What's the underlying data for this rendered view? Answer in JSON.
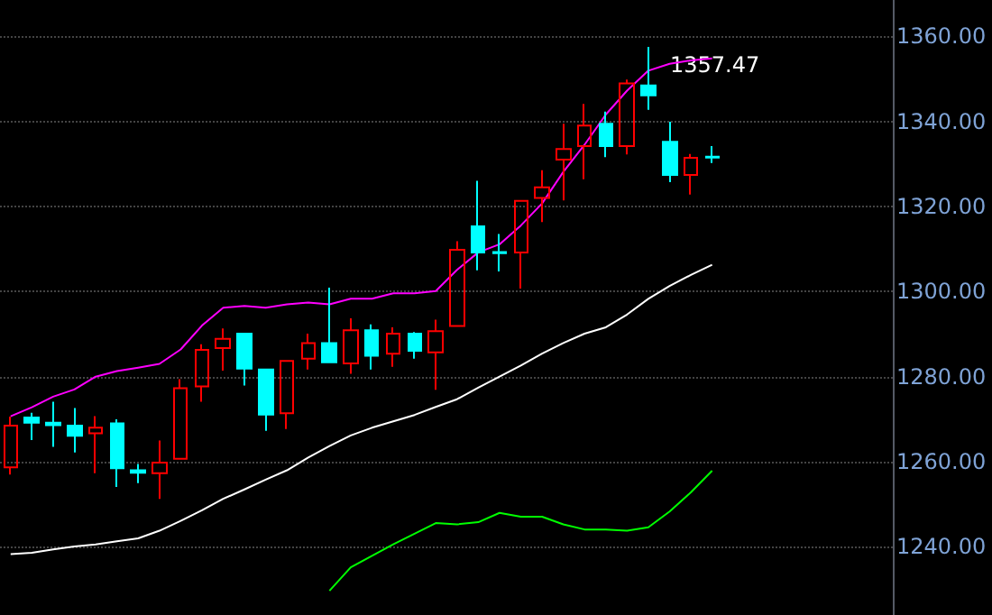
{
  "chart_data": {
    "type": "candlestick",
    "categories": [
      null,
      null,
      null,
      null,
      null,
      null,
      null,
      null,
      null,
      null,
      null,
      null,
      null,
      null,
      null,
      null,
      null,
      null,
      null,
      null,
      null,
      null,
      null,
      null,
      null,
      null,
      null,
      null,
      null,
      null,
      null,
      null,
      null,
      null
    ],
    "ohlc": [
      [
        1258.7,
        1270.6,
        1257.0,
        1268.5
      ],
      [
        1270.4,
        1271.5,
        1265.1,
        1269.2
      ],
      [
        1269.2,
        1274.1,
        1263.5,
        1268.6
      ],
      [
        1268.5,
        1272.6,
        1262.2,
        1266.1
      ],
      [
        1266.7,
        1270.7,
        1257.3,
        1268.0
      ],
      [
        1269.0,
        1270.0,
        1254.1,
        1258.5
      ],
      [
        1258.0,
        1259.5,
        1255.0,
        1257.4
      ],
      [
        1257.3,
        1265.0,
        1251.3,
        1259.8
      ],
      [
        1260.7,
        1279.4,
        1260.5,
        1277.3
      ],
      [
        1277.7,
        1287.6,
        1274.1,
        1286.3
      ],
      [
        1286.7,
        1291.3,
        1281.4,
        1288.9
      ],
      [
        1290.1,
        1290.1,
        1277.9,
        1281.9
      ],
      [
        1281.7,
        1281.7,
        1267.3,
        1271.1
      ],
      [
        1271.4,
        1283.7,
        1267.7,
        1283.7
      ],
      [
        1284.2,
        1290.1,
        1281.7,
        1287.9
      ],
      [
        1287.9,
        1300.9,
        1283.4,
        1283.4
      ],
      [
        1283.1,
        1293.7,
        1280.7,
        1290.9
      ],
      [
        1290.9,
        1292.3,
        1281.7,
        1284.9
      ],
      [
        1285.4,
        1291.6,
        1282.3,
        1290.1
      ],
      [
        1290.1,
        1290.5,
        1284.2,
        1286.1
      ],
      [
        1285.7,
        1293.4,
        1276.9,
        1290.7
      ],
      [
        1291.9,
        1311.8,
        1291.9,
        1309.8
      ],
      [
        1315.3,
        1326.0,
        1305.0,
        1309.2
      ],
      [
        1309.3,
        1313.5,
        1304.7,
        1309.0
      ],
      [
        1309.2,
        1321.3,
        1300.7,
        1321.3
      ],
      [
        1322.0,
        1328.5,
        1316.3,
        1324.5
      ],
      [
        1331.0,
        1339.4,
        1321.4,
        1333.5
      ],
      [
        1334.2,
        1344.1,
        1326.4,
        1339.0
      ],
      [
        1339.4,
        1342.3,
        1331.6,
        1334.2
      ],
      [
        1334.2,
        1349.8,
        1332.2,
        1348.9
      ],
      [
        1348.4,
        1357.47,
        1342.7,
        1346.1
      ],
      [
        1335.2,
        1339.9,
        1325.7,
        1327.4
      ],
      [
        1327.4,
        1332.3,
        1322.8,
        1331.4
      ],
      [
        1331.7,
        1334.2,
        1330.2,
        1331.5
      ]
    ],
    "colors": [
      "#ff0000",
      "#00ffff",
      "#00ffff",
      "#00ffff",
      "#ff0000",
      "#00ffff",
      "#00ffff",
      "#ff0000",
      "#ff0000",
      "#ff0000",
      "#ff0000",
      "#00ffff",
      "#00ffff",
      "#ff0000",
      "#ff0000",
      "#00ffff",
      "#ff0000",
      "#00ffff",
      "#ff0000",
      "#00ffff",
      "#ff0000",
      "#ff0000",
      "#00ffff",
      "#00ffff",
      "#ff0000",
      "#ff0000",
      "#ff0000",
      "#ff0000",
      "#00ffff",
      "#ff0000",
      "#00ffff",
      "#00ffff",
      "#ff0000",
      "#00ffff"
    ],
    "series": [
      {
        "type": "line",
        "color": "#ff00ff",
        "values": [
          1270.7,
          1272.8,
          1275.3,
          1277.0,
          1280.0,
          1281.3,
          1282.1,
          1283.0,
          1286.4,
          1292.0,
          1296.2,
          1296.6,
          1296.2,
          1297.0,
          1297.4,
          1297.0,
          1298.3,
          1298.3,
          1299.6,
          1299.6,
          1300.1,
          1305.1,
          1309.2,
          1311.1,
          1315.5,
          1320.7,
          1328.1,
          1334.5,
          1341.6,
          1347.2,
          1351.9,
          1353.5,
          1354.3,
          1354.8
        ]
      },
      {
        "type": "line",
        "color": "#ffffff",
        "values": [
          1238.3,
          1238.6,
          1239.4,
          1240.1,
          1240.6,
          1241.3,
          1242.0,
          1243.8,
          1246.1,
          1248.6,
          1251.3,
          1253.5,
          1255.8,
          1258.0,
          1261.0,
          1263.7,
          1266.2,
          1268.0,
          1269.5,
          1271.0,
          1272.9,
          1274.7,
          1277.4,
          1280.0,
          1282.6,
          1285.4,
          1287.9,
          1290.1,
          1291.6,
          1294.6,
          1298.3,
          1301.3,
          1303.9,
          1306.3
        ]
      },
      {
        "type": "line",
        "color": "#00ff00",
        "values": [
          null,
          null,
          null,
          null,
          null,
          null,
          null,
          null,
          null,
          null,
          null,
          null,
          null,
          null,
          null,
          1229.7,
          1235.2,
          1237.9,
          1240.6,
          1243.1,
          1245.6,
          1245.3,
          1245.8,
          1248.0,
          1247.1,
          1247.1,
          1245.3,
          1244.1,
          1244.1,
          1243.8,
          1244.6,
          1248.3,
          1252.8,
          1257.9
        ]
      }
    ],
    "ylim": [
      1224,
      1368.5
    ],
    "yticks": [
      {
        "value": 1240,
        "label": "1240.00"
      },
      {
        "value": 1260,
        "label": "1260.00"
      },
      {
        "value": 1280,
        "label": "1280.00"
      },
      {
        "value": 1300,
        "label": "1300.00"
      },
      {
        "value": 1320,
        "label": "1320.00"
      },
      {
        "value": 1340,
        "label": "1340.00"
      },
      {
        "value": 1360,
        "label": "1360.00"
      }
    ],
    "annotations": [
      "1357.47"
    ],
    "grid": "y",
    "tick_labels": "y",
    "marker": "none",
    "line_style": "solid"
  }
}
